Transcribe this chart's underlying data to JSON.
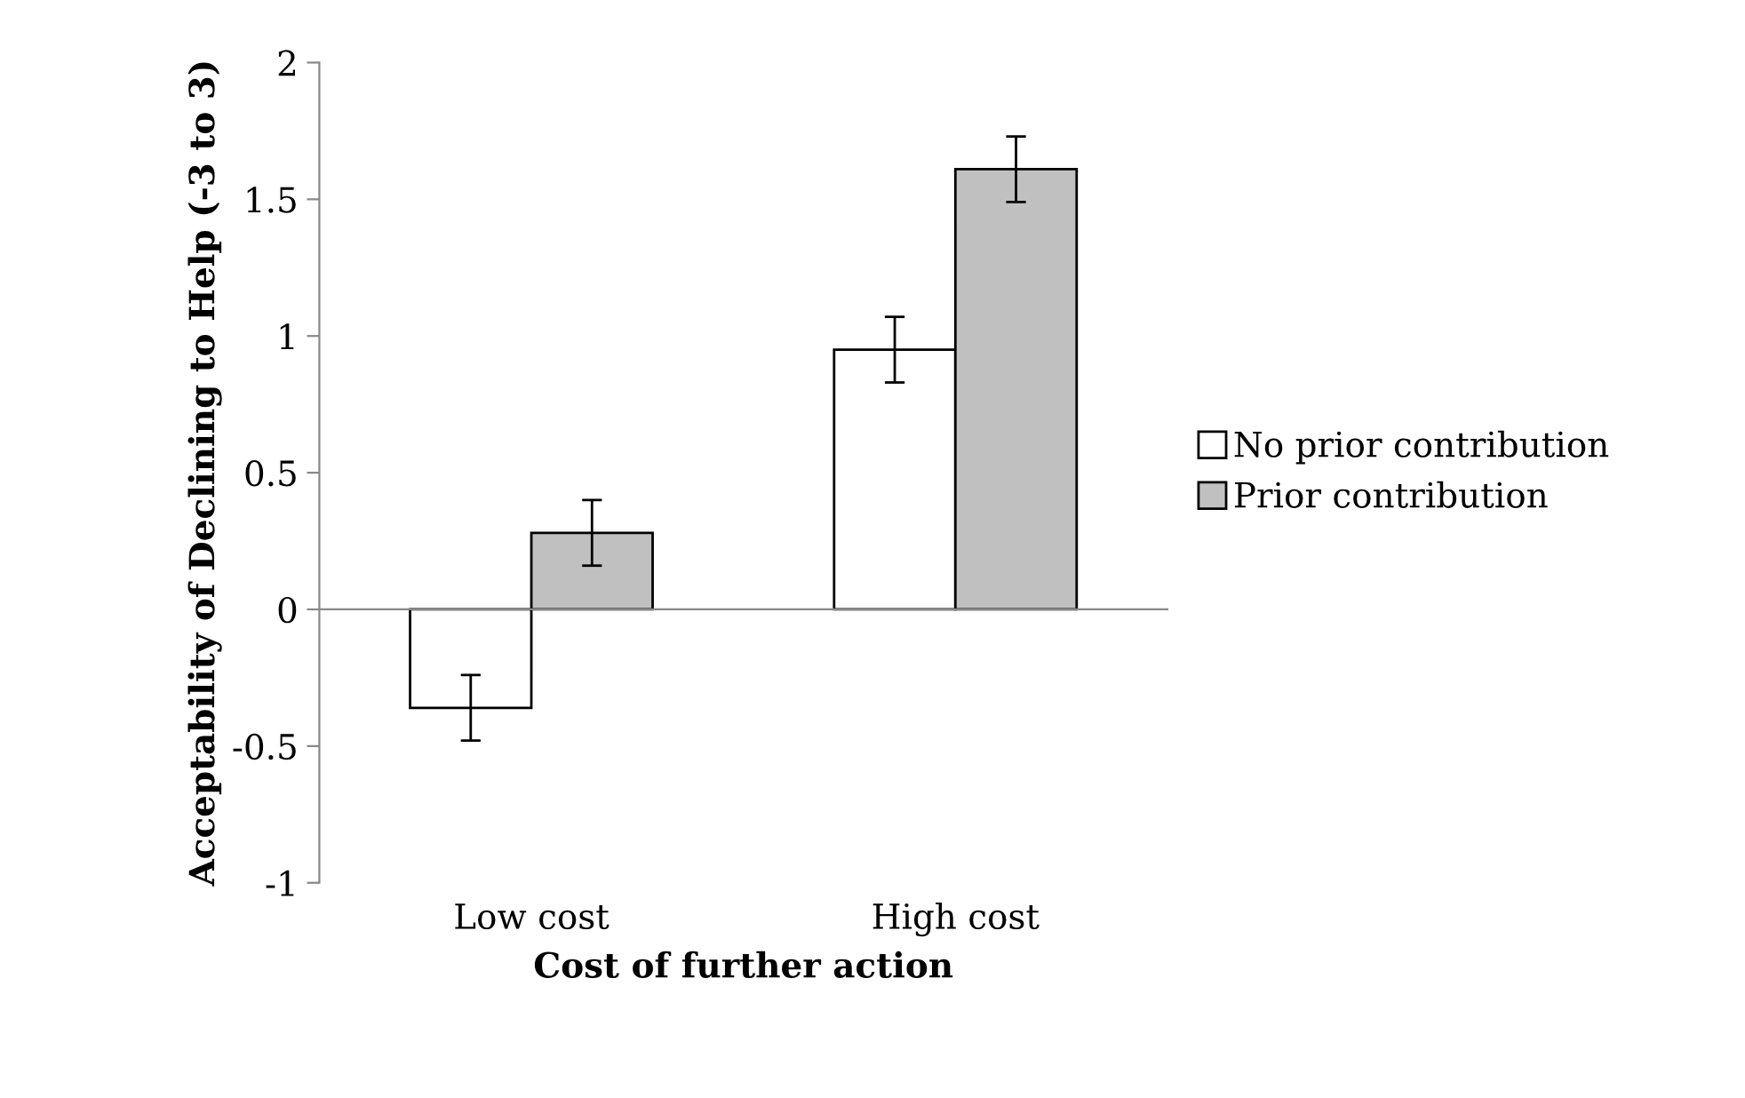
{
  "chart_data": {
    "type": "bar",
    "xlabel": "Cost of further action",
    "ylabel": "Acceptability of Declining to Help (-3 to 3)",
    "categories": [
      "Low cost",
      "High cost"
    ],
    "series": [
      {
        "name": "No prior contribution",
        "color": "#ffffff",
        "values": [
          -0.36,
          0.95
        ],
        "errors": [
          0.12,
          0.12
        ]
      },
      {
        "name": "Prior contribution",
        "color": "#c0c0c0",
        "values": [
          0.28,
          1.61
        ],
        "errors": [
          0.12,
          0.12
        ]
      }
    ],
    "ylim": [
      -1,
      2
    ],
    "yticks": [
      -1,
      -0.5,
      0,
      0.5,
      1,
      1.5,
      2
    ],
    "legend": "right"
  }
}
